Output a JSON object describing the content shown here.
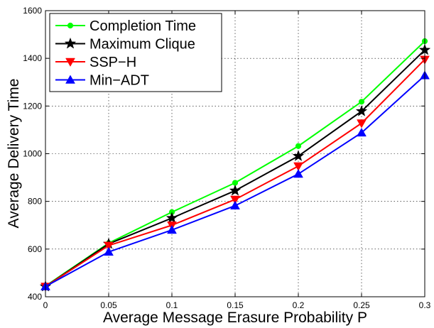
{
  "chart_data": {
    "type": "line",
    "title": "",
    "xlabel": "Average Message Erasure Probability P",
    "ylabel": "Average Delivery Time",
    "x": [
      0,
      0.05,
      0.1,
      0.15,
      0.2,
      0.25,
      0.3
    ],
    "x_tick_labels": [
      "0",
      "0.05",
      "0.1",
      "0.15",
      "0.2",
      "0.25",
      "0.3"
    ],
    "y_ticks": [
      400,
      600,
      800,
      1000,
      1200,
      1400,
      1600
    ],
    "xlim": [
      0,
      0.3
    ],
    "ylim": [
      400,
      1600
    ],
    "grid": true,
    "legend_position": "top-left",
    "series": [
      {
        "name": "Completion Time",
        "color": "#00ff00",
        "marker": "dot",
        "values": [
          445,
          625,
          755,
          878,
          1032,
          1218,
          1472
        ]
      },
      {
        "name": "Maximum Clique",
        "color": "#000000",
        "marker": "star",
        "values": [
          443,
          622,
          730,
          845,
          990,
          1178,
          1435
        ]
      },
      {
        "name": "SSP−H",
        "color": "#ff0000",
        "marker": "triangle-down",
        "values": [
          443,
          615,
          700,
          808,
          948,
          1128,
          1395
        ]
      },
      {
        "name": "Min−ADT",
        "color": "#0000ff",
        "marker": "triangle-up",
        "values": [
          443,
          588,
          680,
          782,
          915,
          1088,
          1328
        ]
      }
    ]
  }
}
